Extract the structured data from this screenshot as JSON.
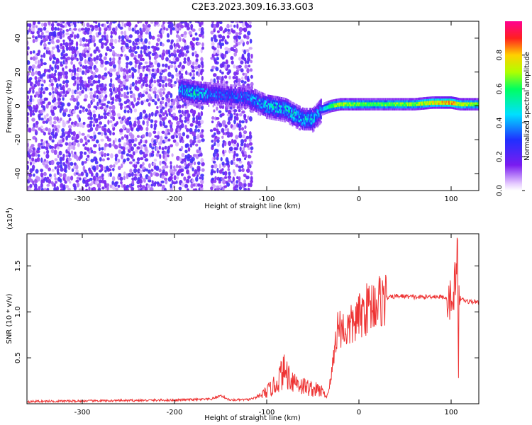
{
  "title": "C2E3.2023.309.16.33.G03",
  "chart_data": [
    {
      "type": "heatmap",
      "xlabel": "Height of straight line (km)",
      "ylabel": "Frequency (Hz)",
      "xlim": [
        -360,
        130
      ],
      "ylim": [
        -50,
        50
      ],
      "x_ticks": [
        "-300",
        "-200",
        "-100",
        "0",
        "100"
      ],
      "y_ticks": [
        "-40",
        "-20",
        "0",
        "20",
        "40"
      ],
      "colorbar": {
        "label": "Normalized spectral amplitude",
        "range": [
          0,
          1
        ],
        "ticks": [
          "0.0",
          "0.2",
          "0.4",
          "0.6",
          "0.8"
        ],
        "colors": [
          "#e6ccff",
          "#7a1cf0",
          "#2030ff",
          "#00e0ff",
          "#00ff60",
          "#b0ff00",
          "#ffd000",
          "#ff2020",
          "#ff0090"
        ]
      },
      "regions": [
        {
          "description": "broadband noise",
          "x_range": [
            -360,
            -170
          ],
          "freq_range": [
            -50,
            50
          ],
          "amplitude": 0.15
        },
        {
          "description": "broadband noise",
          "x_range": [
            -160,
            -115
          ],
          "freq_range": [
            -50,
            50
          ],
          "amplitude": 0.15
        }
      ],
      "ridge": {
        "x": [
          -195,
          -180,
          -160,
          -140,
          -120,
          -100,
          -80,
          -60,
          -50,
          -40,
          -30,
          -20,
          0,
          20,
          40,
          60,
          80,
          100,
          110,
          130
        ],
        "freq": [
          10,
          8,
          7,
          6,
          5,
          0,
          -2,
          -8,
          -8,
          -2,
          0,
          1,
          1,
          1,
          1,
          1,
          2,
          2,
          1,
          1
        ],
        "amplitude": [
          0.35,
          0.5,
          0.35,
          0.3,
          0.35,
          0.45,
          0.5,
          0.45,
          0.45,
          0.4,
          0.7,
          0.75,
          0.7,
          0.65,
          0.7,
          0.7,
          0.8,
          0.9,
          0.75,
          0.7
        ]
      }
    },
    {
      "type": "line",
      "xlabel": "Height of straight line (km)",
      "ylabel": "SNR (10 * v/v)",
      "scale_label": "(x10",
      "scale_exp": "4",
      "scale_close": ")",
      "xlim": [
        -360,
        130
      ],
      "ylim": [
        0,
        18500
      ],
      "x_ticks": [
        "-300",
        "-200",
        "-100",
        "0",
        "100"
      ],
      "y_ticks": [
        "0.5",
        "1.0",
        "1.5"
      ],
      "series": [
        {
          "color": "#ee3333",
          "x": [
            -360,
            -300,
            -250,
            -200,
            -160,
            -150,
            -140,
            -120,
            -110,
            -100,
            -90,
            -85,
            -80,
            -75,
            -70,
            -65,
            -60,
            -50,
            -40,
            -35,
            -30,
            -27,
            -25,
            -23,
            -20,
            -15,
            -10,
            -5,
            0,
            5,
            10,
            20,
            30,
            40,
            50,
            60,
            70,
            80,
            90,
            95,
            100,
            103,
            105,
            107,
            108,
            110,
            115,
            120,
            130
          ],
          "y": [
            250,
            300,
            350,
            400,
            500,
            900,
            400,
            450,
            700,
            1300,
            2100,
            3100,
            3600,
            2900,
            2500,
            2200,
            1900,
            1600,
            1400,
            700,
            2800,
            5600,
            7200,
            8300,
            8400,
            7900,
            8300,
            8800,
            9400,
            10000,
            10500,
            11100,
            11500,
            11700,
            11700,
            11600,
            11600,
            11700,
            11600,
            11600,
            11500,
            12200,
            14800,
            9000,
            11000,
            11500,
            11200,
            11100,
            11100
          ]
        }
      ]
    }
  ]
}
